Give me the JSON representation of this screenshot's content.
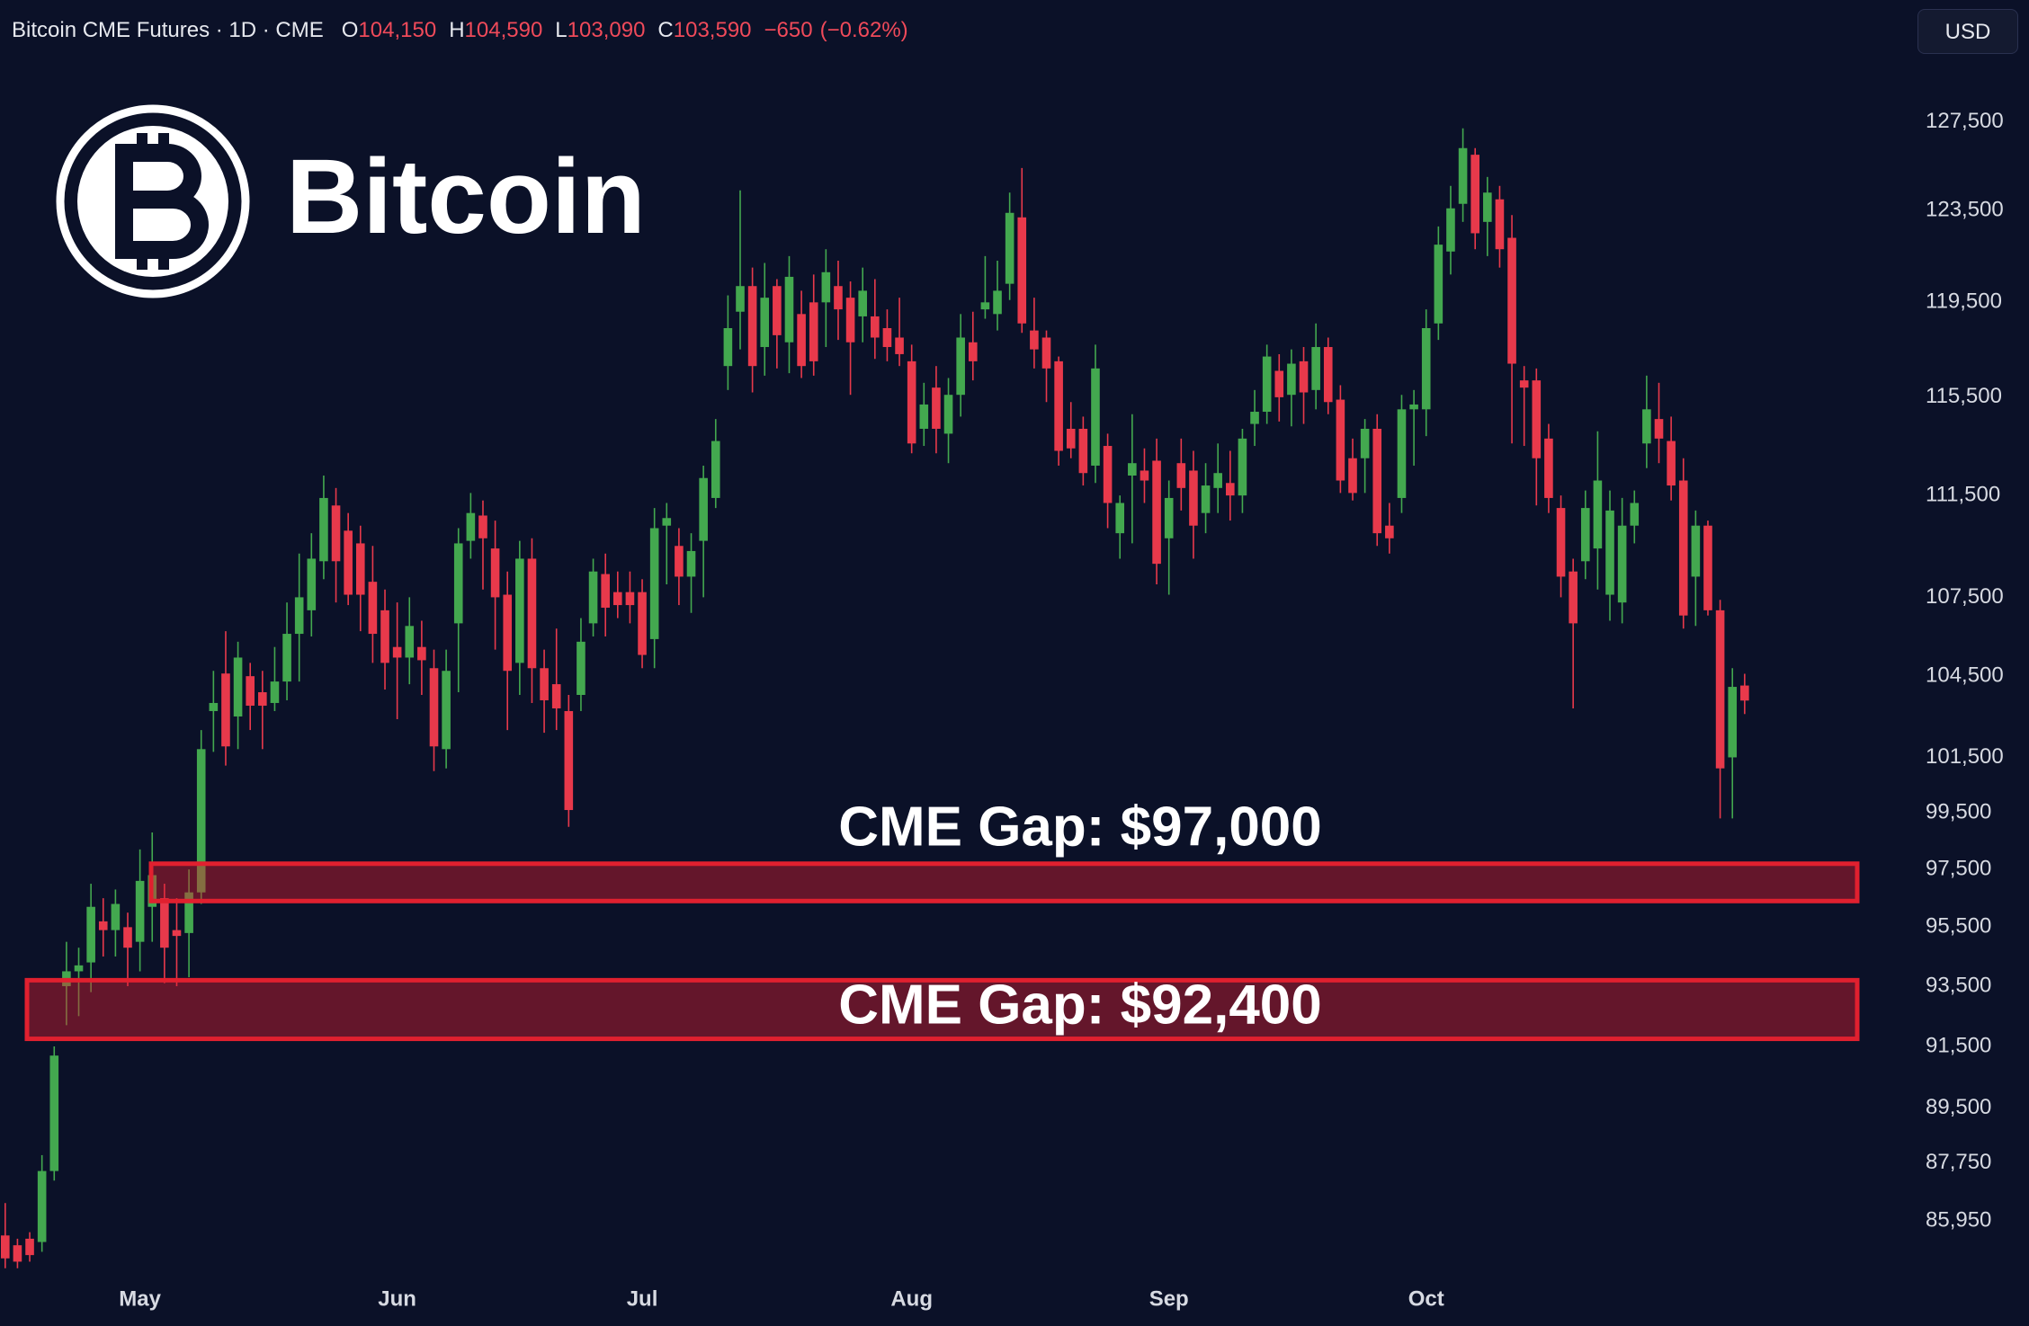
{
  "header": {
    "title": "Bitcoin CME Futures · 1D · CME",
    "ohlc": [
      {
        "key": "O",
        "value": {
          "value": 104150,
          "label": "104,150"
        }
      },
      {
        "key": "H",
        "value": {
          "value": 104590,
          "label": "104,590"
        }
      },
      {
        "key": "L",
        "value": {
          "value": 103090,
          "label": "103,090"
        }
      },
      {
        "key": "C",
        "value": {
          "value": 103590,
          "label": "103,590"
        }
      }
    ],
    "change": {
      "value": -650,
      "label": "−650"
    },
    "change_pct": {
      "value": -0.62,
      "label": "(−0.62%)"
    },
    "currency": "USD",
    "logo_text": "Bitcoin"
  },
  "chart_data": {
    "type": "candlestick",
    "log_scale": true,
    "up_color": "#43a84f",
    "down_color": "#e8394b",
    "categories": [
      null,
      null,
      null,
      null,
      null,
      null,
      null,
      null,
      null,
      null,
      null,
      "May",
      null,
      null,
      null,
      null,
      null,
      null,
      null,
      null,
      null,
      null,
      null,
      null,
      null,
      null,
      null,
      null,
      null,
      null,
      null,
      null,
      "Jun",
      null,
      null,
      null,
      null,
      null,
      null,
      null,
      null,
      null,
      null,
      null,
      null,
      null,
      null,
      null,
      null,
      null,
      null,
      null,
      "Jul",
      null,
      null,
      null,
      null,
      null,
      null,
      null,
      null,
      null,
      null,
      null,
      null,
      null,
      null,
      null,
      null,
      null,
      null,
      null,
      null,
      null,
      "Aug",
      null,
      null,
      null,
      null,
      null,
      null,
      null,
      null,
      null,
      null,
      null,
      null,
      null,
      null,
      null,
      null,
      null,
      null,
      null,
      null,
      "Sep",
      null,
      null,
      null,
      null,
      null,
      null,
      null,
      null,
      null,
      null,
      null,
      null,
      null,
      null,
      null,
      null,
      null,
      null,
      null,
      null,
      "Oct",
      null,
      null,
      null,
      null,
      null,
      null,
      null,
      null,
      null,
      null,
      null,
      null,
      null,
      null,
      null,
      null,
      null,
      null,
      null,
      null,
      null,
      null,
      null,
      null,
      null,
      null
    ],
    "open": [
      85500,
      85200,
      85400,
      85300,
      87500,
      93500,
      94000,
      94300,
      95700,
      95400,
      95500,
      95000,
      96200,
      96500,
      95400,
      95300,
      96700,
      103200,
      104600,
      103000,
      104500,
      103900,
      103500,
      104300,
      106100,
      107000,
      108900,
      111100,
      110100,
      109600,
      108100,
      107000,
      105600,
      105200,
      105600,
      104800,
      101800,
      106500,
      109700,
      110700,
      109400,
      107600,
      105000,
      109000,
      104800,
      104200,
      103200,
      103800,
      106500,
      108400,
      107700,
      107700,
      107700,
      105900,
      110300,
      109500,
      108300,
      109700,
      111400,
      116800,
      119100,
      120200,
      117600,
      120200,
      117800,
      119000,
      119500,
      119500,
      120200,
      119700,
      118900,
      118900,
      118400,
      118000,
      117000,
      114200,
      115900,
      114000,
      115600,
      117800,
      119200,
      119000,
      120300,
      123200,
      118300,
      118000,
      117000,
      114200,
      114200,
      112700,
      113500,
      110000,
      112300,
      112500,
      112900,
      109800,
      112800,
      112500,
      110800,
      111800,
      112000,
      111500,
      114400,
      114900,
      116600,
      115600,
      117000,
      115800,
      117600,
      115400,
      113000,
      113000,
      114200,
      110300,
      111400,
      115000,
      115000,
      118600,
      121700,
      123800,
      126000,
      123000,
      124000,
      122300,
      116200,
      116200,
      113800,
      111000,
      108500,
      108900,
      109400,
      107600,
      107300,
      110300,
      113600,
      114600,
      113700,
      112100,
      108300,
      110300,
      107000,
      101500,
      104150
    ],
    "high": [
      86500,
      85400,
      85600,
      88000,
      91500,
      95000,
      94800,
      97000,
      96500,
      96800,
      96000,
      98200,
      98800,
      97000,
      96500,
      97500,
      102500,
      104700,
      106200,
      105800,
      105000,
      104700,
      105600,
      107300,
      109200,
      110000,
      112300,
      111800,
      110800,
      110300,
      109500,
      107800,
      107300,
      107500,
      106600,
      105500,
      105500,
      110200,
      111600,
      111300,
      110500,
      108500,
      109700,
      109800,
      105500,
      106300,
      103800,
      106700,
      109000,
      109200,
      108500,
      108500,
      108200,
      111000,
      111200,
      110200,
      110000,
      112700,
      114600,
      119800,
      124400,
      121000,
      121200,
      120500,
      121500,
      120000,
      120700,
      121800,
      121300,
      120400,
      121000,
      120500,
      119200,
      119700,
      117700,
      116100,
      116800,
      116300,
      119000,
      119100,
      121500,
      121300,
      124300,
      125400,
      119700,
      118300,
      117200,
      115300,
      114700,
      117700,
      114000,
      111500,
      114800,
      113400,
      113800,
      112100,
      113800,
      113300,
      112800,
      113600,
      113300,
      114200,
      115800,
      117700,
      117300,
      117500,
      117600,
      118600,
      118000,
      116000,
      113800,
      114600,
      114800,
      111200,
      115600,
      115800,
      119200,
      122800,
      124600,
      127200,
      126300,
      125000,
      124600,
      123300,
      116800,
      116700,
      114400,
      111500,
      109000,
      111700,
      114100,
      111700,
      111400,
      111700,
      116400,
      116100,
      114700,
      113000,
      110900,
      110500,
      107400,
      104800,
      104590
    ],
    "low": [
      84500,
      84500,
      84700,
      85000,
      87200,
      92200,
      92500,
      93300,
      94500,
      94500,
      93500,
      94000,
      95000,
      93600,
      93500,
      93800,
      96300,
      101700,
      101200,
      101800,
      102500,
      101800,
      103200,
      103600,
      104300,
      106000,
      108200,
      107300,
      107200,
      106200,
      105000,
      104000,
      102900,
      104200,
      103800,
      101000,
      101100,
      103900,
      109000,
      107800,
      105500,
      102500,
      103800,
      103500,
      102400,
      102500,
      99000,
      103200,
      106000,
      106000,
      106700,
      106500,
      104800,
      104800,
      108000,
      107200,
      106900,
      107500,
      111000,
      115800,
      117500,
      115700,
      116400,
      116700,
      116500,
      116300,
      116400,
      117600,
      117900,
      115600,
      117800,
      117100,
      117000,
      116800,
      113200,
      113500,
      113200,
      112800,
      114700,
      116200,
      118800,
      118300,
      119600,
      118200,
      116700,
      115300,
      112700,
      113000,
      111900,
      112000,
      110200,
      109000,
      109600,
      111200,
      108000,
      107600,
      110900,
      109000,
      110000,
      110800,
      110500,
      110800,
      113500,
      114400,
      114500,
      114300,
      114400,
      115000,
      114800,
      111600,
      111300,
      111600,
      109500,
      109200,
      110800,
      112700,
      113900,
      117900,
      120700,
      123000,
      121800,
      121500,
      121000,
      113600,
      113500,
      111100,
      110800,
      107500,
      103300,
      108200,
      107800,
      106600,
      106500,
      109600,
      112600,
      112800,
      111300,
      106300,
      106400,
      106800,
      99300,
      99300,
      103090
    ],
    "close": [
      84800,
      84700,
      84900,
      87500,
      91200,
      94000,
      94200,
      96200,
      95400,
      96300,
      94800,
      97100,
      97300,
      94800,
      95200,
      96700,
      101800,
      103500,
      101900,
      105200,
      103400,
      103400,
      104300,
      106100,
      107500,
      109000,
      111400,
      108900,
      107600,
      107600,
      106100,
      105000,
      105200,
      106400,
      105100,
      101900,
      104700,
      109600,
      110800,
      109800,
      107500,
      104700,
      109000,
      104800,
      103600,
      103300,
      99600,
      105800,
      108500,
      107100,
      107200,
      107200,
      105300,
      110200,
      110600,
      108300,
      109300,
      112200,
      113700,
      118400,
      120200,
      116800,
      119700,
      118100,
      120600,
      116800,
      117000,
      120800,
      119200,
      117800,
      120000,
      118000,
      117600,
      117300,
      113600,
      115200,
      114200,
      115600,
      118000,
      117000,
      119500,
      120000,
      123400,
      118600,
      117500,
      116700,
      113300,
      113400,
      112400,
      116700,
      111200,
      111200,
      112800,
      112100,
      108800,
      111400,
      111800,
      110300,
      111900,
      112400,
      111500,
      113800,
      114900,
      117200,
      115500,
      116900,
      115700,
      117600,
      115300,
      112100,
      111600,
      114200,
      110000,
      109800,
      115000,
      115200,
      118400,
      122000,
      123600,
      126300,
      122500,
      124300,
      121800,
      116900,
      115900,
      113000,
      111400,
      108300,
      106500,
      111000,
      112100,
      110900,
      110300,
      111200,
      115000,
      113800,
      111900,
      106800,
      110300,
      107000,
      101100,
      104100,
      103590
    ],
    "ylim": [
      84330,
      130430
    ],
    "yticks": [
      {
        "value": 127500,
        "label": "127,500"
      },
      {
        "value": 123500,
        "label": "123,500"
      },
      {
        "value": 119500,
        "label": "119,500"
      },
      {
        "value": 115500,
        "label": "115,500"
      },
      {
        "value": 111500,
        "label": "111,500"
      },
      {
        "value": 107500,
        "label": "107,500"
      },
      {
        "value": 104500,
        "label": "104,500"
      },
      {
        "value": 101500,
        "label": "101,500"
      },
      {
        "value": 99500,
        "label": "99,500"
      },
      {
        "value": 97500,
        "label": "97,500"
      },
      {
        "value": 95500,
        "label": "95,500"
      },
      {
        "value": 93500,
        "label": "93,500"
      },
      {
        "value": 91500,
        "label": "91,500"
      },
      {
        "value": 89500,
        "label": "89,500"
      },
      {
        "value": 87750,
        "label": "87,750"
      },
      {
        "value": 85950,
        "label": "85,950"
      }
    ],
    "grid": false,
    "zones": [
      {
        "label": "CME Gap: $97,000",
        "low": 96400,
        "high": 97700
      },
      {
        "label": "CME Gap: $92,400",
        "low": 91750,
        "high": 93700
      }
    ],
    "zone_color": "#e0202f"
  }
}
